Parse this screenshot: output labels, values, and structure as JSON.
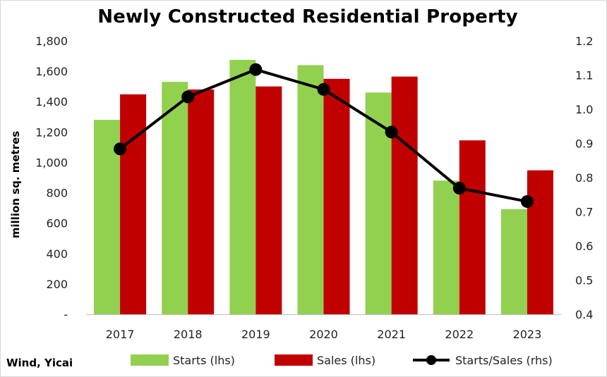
{
  "source": "Wind, Yicai",
  "chart_data": {
    "type": "bar",
    "title": "Newly Constructed Residential Property",
    "ylabel": "million sq. metres",
    "ylabel_right": "",
    "categories": [
      "2017",
      "2018",
      "2019",
      "2020",
      "2021",
      "2022",
      "2023"
    ],
    "ylim": [
      0,
      1800
    ],
    "yticks": [
      0,
      200,
      400,
      600,
      800,
      1000,
      1200,
      1400,
      1600,
      1800
    ],
    "ytick_labels": [
      "-",
      "200",
      "400",
      "600",
      "800",
      "1,000",
      "1,200",
      "1,400",
      "1,600",
      "1,800"
    ],
    "y2lim": [
      0.4,
      1.2
    ],
    "y2ticks": [
      0.4,
      0.5,
      0.6,
      0.7,
      0.8,
      0.9,
      1.0,
      1.1,
      1.2
    ],
    "y2tick_labels": [
      "0.4",
      "0.5",
      "0.6",
      "0.7",
      "0.8",
      "0.9",
      "1.0",
      "1.1",
      "1.2"
    ],
    "series": [
      {
        "name": "Starts (lhs)",
        "type": "bar",
        "axis": "left",
        "color": "#92d050",
        "values": [
          1280,
          1530,
          1675,
          1640,
          1460,
          880,
          692
        ]
      },
      {
        "name": "Sales (lhs)",
        "type": "bar",
        "axis": "left",
        "color": "#c00000",
        "values": [
          1448,
          1480,
          1500,
          1550,
          1565,
          1145,
          948
        ]
      },
      {
        "name": "Starts/Sales (rhs)",
        "type": "line",
        "axis": "right",
        "color": "#000000",
        "values": [
          0.884,
          1.036,
          1.116,
          1.058,
          0.933,
          0.769,
          0.73
        ]
      }
    ],
    "grid": false,
    "legend_position": "bottom"
  }
}
